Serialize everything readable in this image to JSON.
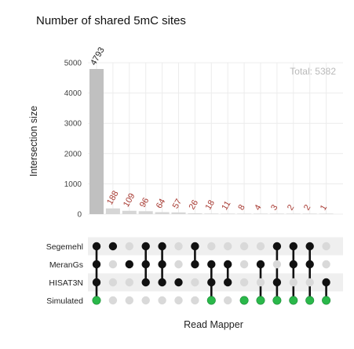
{
  "chart_data": {
    "type": "bar",
    "subtype": "upset",
    "title": "Number of shared 5mC sites",
    "ylabel": "Intersection size",
    "xlabel": "Read Mapper",
    "ylim": [
      0,
      5000
    ],
    "yticks": [
      0,
      1000,
      2000,
      3000,
      4000,
      5000
    ],
    "total_label": "Total: 5382",
    "sets": [
      "Segemehl",
      "MeranGs",
      "HISAT3N",
      "Simulated"
    ],
    "values": [
      4793,
      188,
      109,
      96,
      64,
      57,
      26,
      18,
      11,
      8,
      4,
      3,
      2,
      2,
      1
    ],
    "membership": [
      [
        1,
        1,
        1,
        1
      ],
      [
        1,
        0,
        0,
        0
      ],
      [
        0,
        1,
        0,
        0
      ],
      [
        1,
        1,
        1,
        0
      ],
      [
        1,
        1,
        1,
        0
      ],
      [
        0,
        0,
        1,
        0
      ],
      [
        1,
        1,
        0,
        0
      ],
      [
        0,
        1,
        1,
        1
      ],
      [
        0,
        1,
        1,
        0
      ],
      [
        0,
        0,
        0,
        1
      ],
      [
        0,
        1,
        0,
        1
      ],
      [
        1,
        0,
        1,
        1
      ],
      [
        1,
        1,
        0,
        1
      ],
      [
        1,
        1,
        0,
        1
      ],
      [
        0,
        0,
        1,
        1
      ]
    ],
    "colors": {
      "bar_main": "#c0c0c0",
      "bar_small": "#d6d6d6",
      "label_main": "#222222",
      "label_small": "#a83a32",
      "dot_active": "#111111",
      "dot_inactive": "#d9d9d9",
      "dot_simulated": "#2ab84a",
      "grid": "#ececec",
      "stripe": "#efefef"
    }
  }
}
